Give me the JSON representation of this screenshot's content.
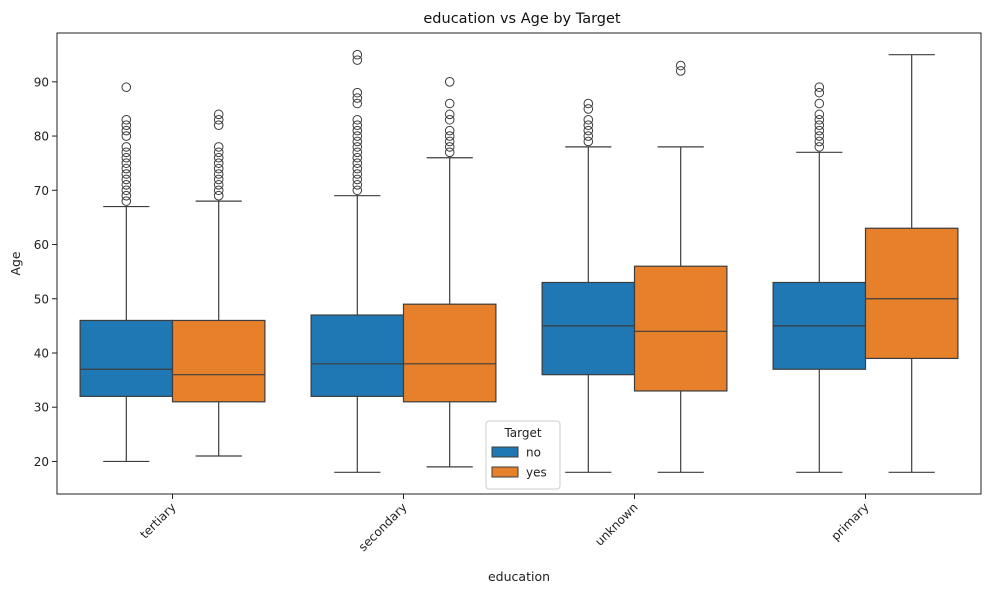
{
  "chart_data": {
    "type": "boxplot",
    "title": "education vs Age by Target",
    "xlabel": "education",
    "ylabel": "Age",
    "categories": [
      "tertiary",
      "secondary",
      "unknown",
      "primary"
    ],
    "ylim": [
      14,
      99
    ],
    "yticks": [
      20,
      30,
      40,
      50,
      60,
      70,
      80,
      90
    ],
    "grid": false,
    "legend": {
      "title": "Target",
      "placement": "lower-center",
      "entries": [
        "no",
        "yes"
      ]
    },
    "series": [
      {
        "name": "no",
        "color": "#1f77b4",
        "boxes": [
          {
            "whisker_low": 20,
            "q1": 32,
            "median": 37,
            "q3": 46,
            "whisker_high": 67,
            "outliers": [
              68,
              69,
              70,
              71,
              72,
              73,
              74,
              75,
              76,
              77,
              78,
              80,
              81,
              82,
              83,
              89
            ]
          },
          {
            "whisker_low": 18,
            "q1": 32,
            "median": 38,
            "q3": 47,
            "whisker_high": 69,
            "outliers": [
              70,
              71,
              72,
              73,
              74,
              75,
              76,
              77,
              78,
              79,
              80,
              81,
              82,
              83,
              86,
              87,
              88,
              94,
              95
            ]
          },
          {
            "whisker_low": 18,
            "q1": 36,
            "median": 45,
            "q3": 53,
            "whisker_high": 78,
            "outliers": [
              79,
              80,
              81,
              82,
              83,
              85,
              86
            ]
          },
          {
            "whisker_low": 18,
            "q1": 37,
            "median": 45,
            "q3": 53,
            "whisker_high": 77,
            "outliers": [
              78,
              79,
              80,
              81,
              82,
              83,
              84,
              86,
              88,
              89
            ]
          }
        ]
      },
      {
        "name": "yes",
        "color": "#e6802a",
        "boxes": [
          {
            "whisker_low": 21,
            "q1": 31,
            "median": 36,
            "q3": 46,
            "whisker_high": 68,
            "outliers": [
              69,
              70,
              71,
              72,
              73,
              74,
              75,
              76,
              77,
              78,
              82,
              83,
              84
            ]
          },
          {
            "whisker_low": 19,
            "q1": 31,
            "median": 38,
            "q3": 49,
            "whisker_high": 76,
            "outliers": [
              77,
              78,
              79,
              80,
              81,
              83,
              84,
              86,
              90
            ]
          },
          {
            "whisker_low": 18,
            "q1": 33,
            "median": 44,
            "q3": 56,
            "whisker_high": 78,
            "outliers": [
              92,
              93
            ]
          },
          {
            "whisker_low": 18,
            "q1": 39,
            "median": 50,
            "q3": 63,
            "whisker_high": 95,
            "outliers": []
          }
        ]
      }
    ]
  }
}
